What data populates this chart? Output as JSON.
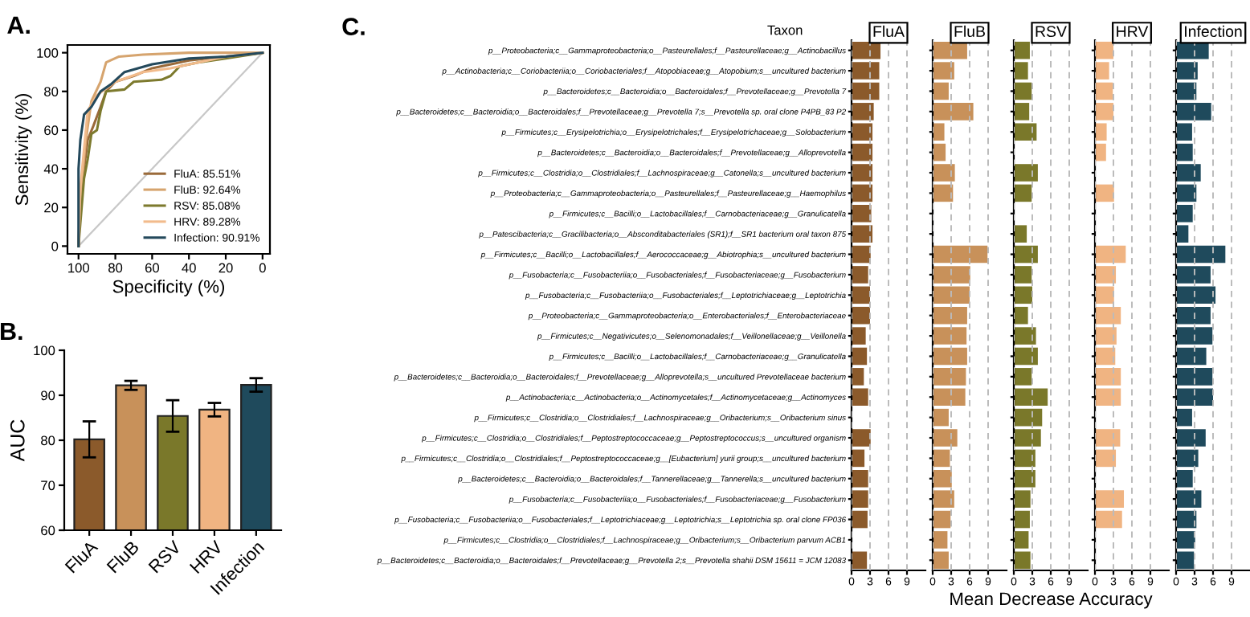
{
  "chart_data": [
    {
      "type": "line",
      "title": "A.",
      "xlabel": "Specificity (%)",
      "ylabel": "Sensitivity (%)",
      "xlim": [
        106,
        -4
      ],
      "xticks": [
        100,
        80,
        60,
        40,
        20,
        0
      ],
      "ylim": [
        -4,
        104
      ],
      "yticks": [
        0,
        20,
        40,
        60,
        80,
        100
      ],
      "legend": "bottom right",
      "series": [
        {
          "name": "FluA: 85.51%",
          "color": "#9a6a3a",
          "x": [
            100,
            99,
            97,
            95,
            92,
            88,
            85,
            80,
            70,
            60,
            40,
            20,
            0
          ],
          "values": [
            0,
            25,
            40,
            55,
            62,
            72,
            80,
            85,
            88,
            92,
            96,
            98,
            100
          ]
        },
        {
          "name": "FluB: 92.64%",
          "color": "#d6a46e",
          "x": [
            100,
            99,
            98,
            96,
            93,
            88,
            85,
            78,
            65,
            40,
            0
          ],
          "values": [
            0,
            20,
            35,
            55,
            75,
            85,
            95,
            98,
            99,
            100,
            100
          ]
        },
        {
          "name": "RSV: 85.08%",
          "color": "#7d7a2e",
          "x": [
            100,
            99,
            97,
            95,
            93,
            90,
            88,
            85,
            75,
            70,
            55,
            50,
            45,
            35,
            20,
            0
          ],
          "values": [
            0,
            12,
            35,
            45,
            58,
            60,
            70,
            80,
            81,
            85,
            86,
            88,
            93,
            95,
            97,
            100
          ]
        },
        {
          "name": "HRV: 89.28%",
          "color": "#f2bb8c",
          "x": [
            100,
            99,
            97,
            95,
            90,
            80,
            65,
            50,
            35,
            20,
            0
          ],
          "values": [
            0,
            30,
            50,
            70,
            78,
            85,
            90,
            92,
            95,
            98,
            100
          ]
        },
        {
          "name": "Infection: 90.91%",
          "color": "#24495c",
          "x": [
            100,
            100,
            99,
            97,
            93,
            88,
            82,
            75,
            60,
            40,
            20,
            0
          ],
          "values": [
            0,
            40,
            55,
            68,
            72,
            80,
            84,
            90,
            94,
            97,
            98,
            100
          ]
        },
        {
          "color": "#c8c8c8",
          "x": [
            100,
            0
          ],
          "values": [
            0,
            100
          ]
        }
      ]
    },
    {
      "type": "bar",
      "title": "B.",
      "ylabel": "AUC",
      "categories": [
        "FluA",
        "FluB",
        "RSV",
        "HRV",
        "Infection"
      ],
      "values": [
        80.2,
        92.2,
        85.4,
        86.8,
        92.3
      ],
      "errors": [
        4,
        1,
        3.5,
        1.5,
        1.5
      ],
      "colors": [
        "#8b5a2b",
        "#c8915a",
        "#7a782a",
        "#f0b482",
        "#1f4a5c"
      ],
      "ylim": [
        60,
        100
      ],
      "yticks": [
        60,
        70,
        80,
        90,
        100
      ]
    },
    {
      "type": "bar",
      "orientation": "horizontal",
      "title": "FluA",
      "annotations": [
        "C.",
        "Taxon"
      ],
      "color": "#8b5a2b",
      "xlim": [
        0,
        12
      ],
      "xticks": [
        0,
        3,
        6,
        9
      ],
      "grid": "x",
      "categories": [
        "p__Proteobacteria;c__Gammaproteobacteria;o__Pasteurellales;f__Pasteurellaceae;g__Actinobacillus",
        "p__Actinobacteria;c__Coriobacteriia;o__Coriobacteriales;f__Atopobiaceae;g__Atopobium;s__uncultured bacterium",
        "p__Bacteroidetes;c__Bacteroidia;o__Bacteroidales;f__Prevotellaceae;g__Prevotella 7",
        "p__Bacteroidetes;c__Bacteroidia;o__Bacteroidales;f__Prevotellaceae;g__Prevotella 7;s__Prevotella sp. oral clone P4PB_83 P2",
        "p__Firmicutes;c__Erysipelotrichia;o__Erysipelotrichales;f__Erysipelotrichaceae;g__Solobacterium",
        "p__Bacteroidetes;c__Bacteroidia;o__Bacteroidales;f__Prevotellaceae;g__Alloprevotella",
        "p__Firmicutes;c__Clostridia;o__Clostridiales;f__Lachnospiraceae;g__Catonella;s__uncultured bacterium",
        "p__Proteobacteria;c__Gammaproteobacteria;o__Pasteurellales;f__Pasteurellaceae;g__Haemophilus",
        "p__Firmicutes;c__Bacilli;o__Lactobacillales;f__Carnobacteriaceae;g__Granulicatella",
        "p__Patescibacteria;c__Gracilibacteria;o__Absconditabacteriales (SR1);f__SR1 bacterium oral taxon 875",
        "p__Firmicutes;c__Bacilli;o__Lactobacillales;f__Aerococcaceae;g__Abiotrophia;s__uncultured bacterium",
        "p__Fusobacteria;c__Fusobacteriia;o__Fusobacteriales;f__Fusobacteriaceae;g__Fusobacterium",
        "p__Fusobacteria;c__Fusobacteriia;o__Fusobacteriales;f__Leptotrichiaceae;g__Leptotrichia",
        "p__Proteobacteria;c__Gammaproteobacteria;o__Enterobacteriales;f__Enterobacteriaceae",
        "p__Firmicutes;c__Negativicutes;o__Selenomonadales;f__Veillonellaceae;g__Veillonella",
        "p__Firmicutes;c__Bacilli;o__Lactobacillales;f__Carnobacteriaceae;g__Granulicatella",
        "p__Bacteroidetes;c__Bacteroidia;o__Bacteroidales;f__Prevotellaceae;g__Alloprevotella;s__uncultured Prevotellaceae bacterium",
        "p__Actinobacteria;c__Actinobacteria;o__Actinomycetales;f__Actinomycetaceae;g__Actinomyces",
        "p__Firmicutes;c__Clostridia;o__Clostridiales;f__Lachnospiraceae;g__Oribacterium;s__Oribacterium sinus",
        "p__Firmicutes;c__Clostridia;o__Clostridiales;f__Peptostreptococcaceae;g__Peptostreptococcus;s__uncultured organism",
        "p__Firmicutes;c__Clostridia;o__Clostridiales;f__Peptostreptococcaceae;g__[Eubacterium] yurii group;s__uncultured bacterium",
        "p__Bacteroidetes;c__Bacteroidia;o__Bacteroidales;f__Tannerellaceae;g__Tannerella;s__uncultured bacterium",
        "p__Fusobacteria;c__Fusobacteriia;o__Fusobacteriales;f__Fusobacteriaceae;g__Fusobacterium",
        "p__Fusobacteria;c__Fusobacteriia;o__Fusobacteriales;f__Leptotrichiaceae;g__Leptotrichia;s__Leptotrichia sp. oral clone FP036",
        "p__Firmicutes;c__Clostridia;o__Clostridiales;f__Lachnospiraceae;g__Oribacterium;s__Oribacterium parvum ACB1",
        "p__Bacteroidetes;c__Bacteroidia;o__Bacteroidales;f__Prevotellaceae;g__Prevotella 2;s__Prevotella shahii DSM 15611 = JCM 12083"
      ],
      "values": [
        4.7,
        4.5,
        4.5,
        3.6,
        3.4,
        3.4,
        3.4,
        3.4,
        3.2,
        3.4,
        3.1,
        2.7,
        3.0,
        3.0,
        2.3,
        2.5,
        2.0,
        2.7,
        null,
        3.1,
        2.1,
        2.7,
        2.7,
        2.6,
        null,
        2.5
      ]
    },
    {
      "type": "bar",
      "orientation": "horizontal",
      "title": "FluB",
      "tick_labels": "x",
      "color": "#c8915a",
      "xlim": [
        0,
        12
      ],
      "xticks": [
        0,
        3,
        6,
        9
      ],
      "grid": "x",
      "categories": [
        null,
        null,
        null,
        null,
        null,
        null,
        null,
        null,
        null,
        null,
        null,
        null,
        null,
        null,
        null,
        null,
        null,
        null,
        null,
        null,
        null,
        null,
        null,
        null,
        null,
        null
      ],
      "values": [
        5.6,
        3.5,
        2.6,
        6.6,
        1.9,
        2.1,
        3.6,
        3.3,
        null,
        null,
        8.9,
        6.1,
        6.0,
        5.6,
        5.5,
        5.6,
        5.4,
        5.3,
        2.6,
        4.0,
        2.8,
        3.1,
        3.5,
        2.9,
        2.4,
        2.6
      ]
    },
    {
      "type": "bar",
      "orientation": "horizontal",
      "title": "RSV",
      "tick_labels": "x",
      "xlabel": "Mean Decrease Accuracy",
      "color": "#7a782a",
      "xlim": [
        0,
        12
      ],
      "xticks": [
        0,
        3,
        6,
        9
      ],
      "grid": "x",
      "categories": [
        null,
        null,
        null,
        null,
        null,
        null,
        null,
        null,
        null,
        null,
        null,
        null,
        null,
        null,
        null,
        null,
        null,
        null,
        null,
        null,
        null,
        null,
        null,
        null,
        null,
        null
      ],
      "values": [
        2.6,
        2.3,
        2.9,
        2.5,
        3.7,
        null,
        3.9,
        2.9,
        null,
        2.1,
        3.9,
        2.9,
        3.0,
        2.3,
        3.6,
        3.9,
        2.9,
        5.5,
        4.6,
        4.4,
        3.5,
        3.5,
        2.7,
        2.6,
        2.4,
        2.7
      ]
    },
    {
      "type": "bar",
      "orientation": "horizontal",
      "title": "HRV",
      "tick_labels": "x",
      "color": "#f0b482",
      "xlim": [
        0,
        12
      ],
      "xticks": [
        0,
        3,
        6,
        9
      ],
      "grid": "x",
      "categories": [
        null,
        null,
        null,
        null,
        null,
        null,
        null,
        null,
        null,
        null,
        null,
        null,
        null,
        null,
        null,
        null,
        null,
        null,
        null,
        null,
        null,
        null,
        null,
        null,
        null,
        null
      ],
      "values": [
        3.0,
        2.3,
        2.9,
        3.0,
        1.9,
        1.8,
        null,
        3.1,
        null,
        null,
        5.0,
        3.4,
        3.1,
        4.2,
        3.5,
        3.3,
        4.2,
        4.2,
        null,
        4.1,
        3.4,
        null,
        4.7,
        4.4,
        null,
        null
      ]
    },
    {
      "type": "bar",
      "orientation": "horizontal",
      "title": "Infection",
      "tick_labels": "x",
      "color": "#1f4a5c",
      "xlim": [
        0,
        12
      ],
      "xticks": [
        0,
        3,
        6,
        9
      ],
      "grid": "x",
      "categories": [
        null,
        null,
        null,
        null,
        null,
        null,
        null,
        null,
        null,
        null,
        null,
        null,
        null,
        null,
        null,
        null,
        null,
        null,
        null,
        null,
        null,
        null,
        null,
        null,
        null,
        null
      ],
      "values": [
        5.3,
        3.5,
        3.3,
        5.7,
        2.6,
        2.7,
        4.0,
        3.3,
        2.7,
        2.0,
        8.0,
        5.6,
        6.4,
        5.6,
        5.9,
        4.9,
        5.9,
        6.0,
        2.6,
        4.8,
        3.6,
        2.7,
        4.1,
        3.3,
        3.1,
        2.9
      ]
    }
  ]
}
